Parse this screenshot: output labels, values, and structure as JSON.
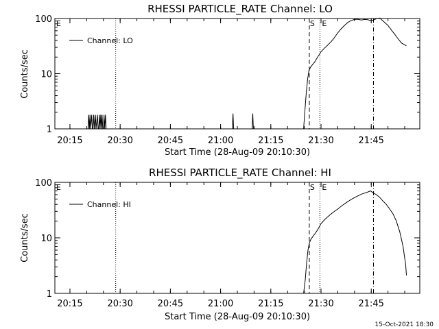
{
  "footer": {
    "timestamp": "15-Oct-2021 18:30"
  },
  "chart_data": [
    {
      "type": "line",
      "title": "RHESSI PARTICLE_RATE Channel: LO",
      "xlabel": "Start Time (28-Aug-09 20:10:30)",
      "ylabel": "Counts/sec",
      "yscale": "log",
      "ylim": [
        1,
        100
      ],
      "xlim_minutes_after_20:00": [
        10.5,
        49.5
      ],
      "x_tick_labels": [
        "20:15",
        "20:30",
        "20:45",
        "21:00",
        "21:15",
        "21:30",
        "21:45"
      ],
      "y_tick_labels": [
        "1",
        "10",
        "100"
      ],
      "legend": {
        "position": "top-left",
        "label": "Channel: LO"
      },
      "markers": {
        "E_left_label": "E",
        "S_label": "S",
        "E_label": "E",
        "dotted_lines_at": [
          "20:28:40",
          "21:29:40"
        ],
        "dashed_line_at": "21:26:30",
        "dashdot_line_at": "21:45:40"
      },
      "series": [
        {
          "values": [
            [
              20.4,
              1
            ],
            [
              20.6,
              1.8
            ],
            [
              20.8,
              1
            ],
            [
              21.0,
              1.8
            ],
            [
              21.2,
              1
            ],
            [
              21.5,
              1.8
            ],
            [
              21.7,
              1
            ],
            [
              21.9,
              1
            ],
            [
              22.1,
              1.8
            ],
            [
              22.3,
              1
            ],
            [
              22.6,
              1.8
            ],
            [
              22.8,
              1
            ],
            [
              23.2,
              1.8
            ],
            [
              23.4,
              1
            ],
            [
              23.6,
              1
            ],
            [
              23.8,
              1.8
            ],
            [
              24.0,
              1
            ],
            [
              24.2,
              1.8
            ],
            [
              24.4,
              1
            ],
            [
              24.6,
              1.8
            ],
            [
              24.8,
              1
            ],
            [
              25.0,
              1
            ],
            [
              25.2,
              1.8
            ],
            [
              25.4,
              1
            ],
            [
              25.6,
              1.8
            ],
            [
              25.8,
              1
            ],
            [
              63.5,
              1
            ],
            [
              63.7,
              1.9
            ],
            [
              63.9,
              1
            ],
            [
              69.4,
              1
            ],
            [
              69.6,
              1.9
            ],
            [
              69.8,
              1
            ],
            [
              84.8,
              1
            ],
            [
              85.2,
              2.2
            ],
            [
              85.6,
              4.5
            ],
            [
              86.0,
              8
            ],
            [
              86.4,
              11.5
            ],
            [
              87.0,
              13.5
            ],
            [
              88.0,
              16
            ],
            [
              89.0,
              20
            ],
            [
              90.0,
              25
            ],
            [
              91.0,
              29
            ],
            [
              92.0,
              33
            ],
            [
              93.0,
              38
            ],
            [
              94.0,
              45
            ],
            [
              95.0,
              55
            ],
            [
              96.0,
              65
            ],
            [
              97.0,
              75
            ],
            [
              98.0,
              85
            ],
            [
              99.0,
              92
            ],
            [
              100.0,
              96
            ],
            [
              101.0,
              97
            ],
            [
              102.0,
              94
            ],
            [
              103.0,
              96
            ],
            [
              104.0,
              95
            ],
            [
              105.0,
              90
            ],
            [
              106.0,
              96
            ],
            [
              107.0,
              101
            ],
            [
              107.6,
              102
            ],
            [
              108.0,
              96
            ],
            [
              109.0,
              85
            ],
            [
              110.0,
              75
            ],
            [
              111.0,
              62
            ],
            [
              112.0,
              52
            ],
            [
              113.0,
              43
            ],
            [
              114.0,
              36
            ],
            [
              115.5,
              32
            ]
          ]
        }
      ]
    },
    {
      "type": "line",
      "title": "RHESSI PARTICLE_RATE Channel: HI",
      "xlabel": "Start Time (28-Aug-09 20:10:30)",
      "ylabel": "Counts/sec",
      "yscale": "log",
      "ylim": [
        1,
        100
      ],
      "x_tick_labels": [
        "20:15",
        "20:30",
        "20:45",
        "21:00",
        "21:15",
        "21:30",
        "21:45"
      ],
      "y_tick_labels": [
        "1",
        "10",
        "100"
      ],
      "legend": {
        "position": "top-left",
        "label": "Channel: HI"
      },
      "markers": {
        "E_left_label": "E",
        "S_label": "S",
        "E_label": "E",
        "dotted_lines_at": [
          "20:28:40",
          "21:29:40"
        ],
        "dashed_line_at": "21:26:30",
        "dashdot_line_at": "21:45:40"
      },
      "series": [
        {
          "values": [
            [
              84.8,
              1
            ],
            [
              85.3,
              1.8
            ],
            [
              85.7,
              3.5
            ],
            [
              86.1,
              6
            ],
            [
              86.5,
              8
            ],
            [
              87.0,
              9.5
            ],
            [
              88.0,
              11.5
            ],
            [
              89.0,
              14
            ],
            [
              90.0,
              18
            ],
            [
              91.0,
              21
            ],
            [
              92.0,
              24
            ],
            [
              93.0,
              27
            ],
            [
              94.0,
              30
            ],
            [
              95.0,
              33
            ],
            [
              96.0,
              37
            ],
            [
              97.0,
              41
            ],
            [
              98.0,
              45
            ],
            [
              99.0,
              49
            ],
            [
              100.0,
              53
            ],
            [
              101.0,
              57
            ],
            [
              102.0,
              61
            ],
            [
              103.0,
              64
            ],
            [
              104.0,
              67
            ],
            [
              104.8,
              70
            ],
            [
              105.5,
              65
            ],
            [
              106.5,
              60
            ],
            [
              107.5,
              54
            ],
            [
              108.5,
              46
            ],
            [
              109.5,
              40
            ],
            [
              110.5,
              33
            ],
            [
              111.5,
              27
            ],
            [
              112.5,
              20
            ],
            [
              113.5,
              13
            ],
            [
              114.5,
              7
            ],
            [
              115.3,
              3.2
            ],
            [
              115.5,
              2.1
            ]
          ]
        }
      ]
    }
  ]
}
